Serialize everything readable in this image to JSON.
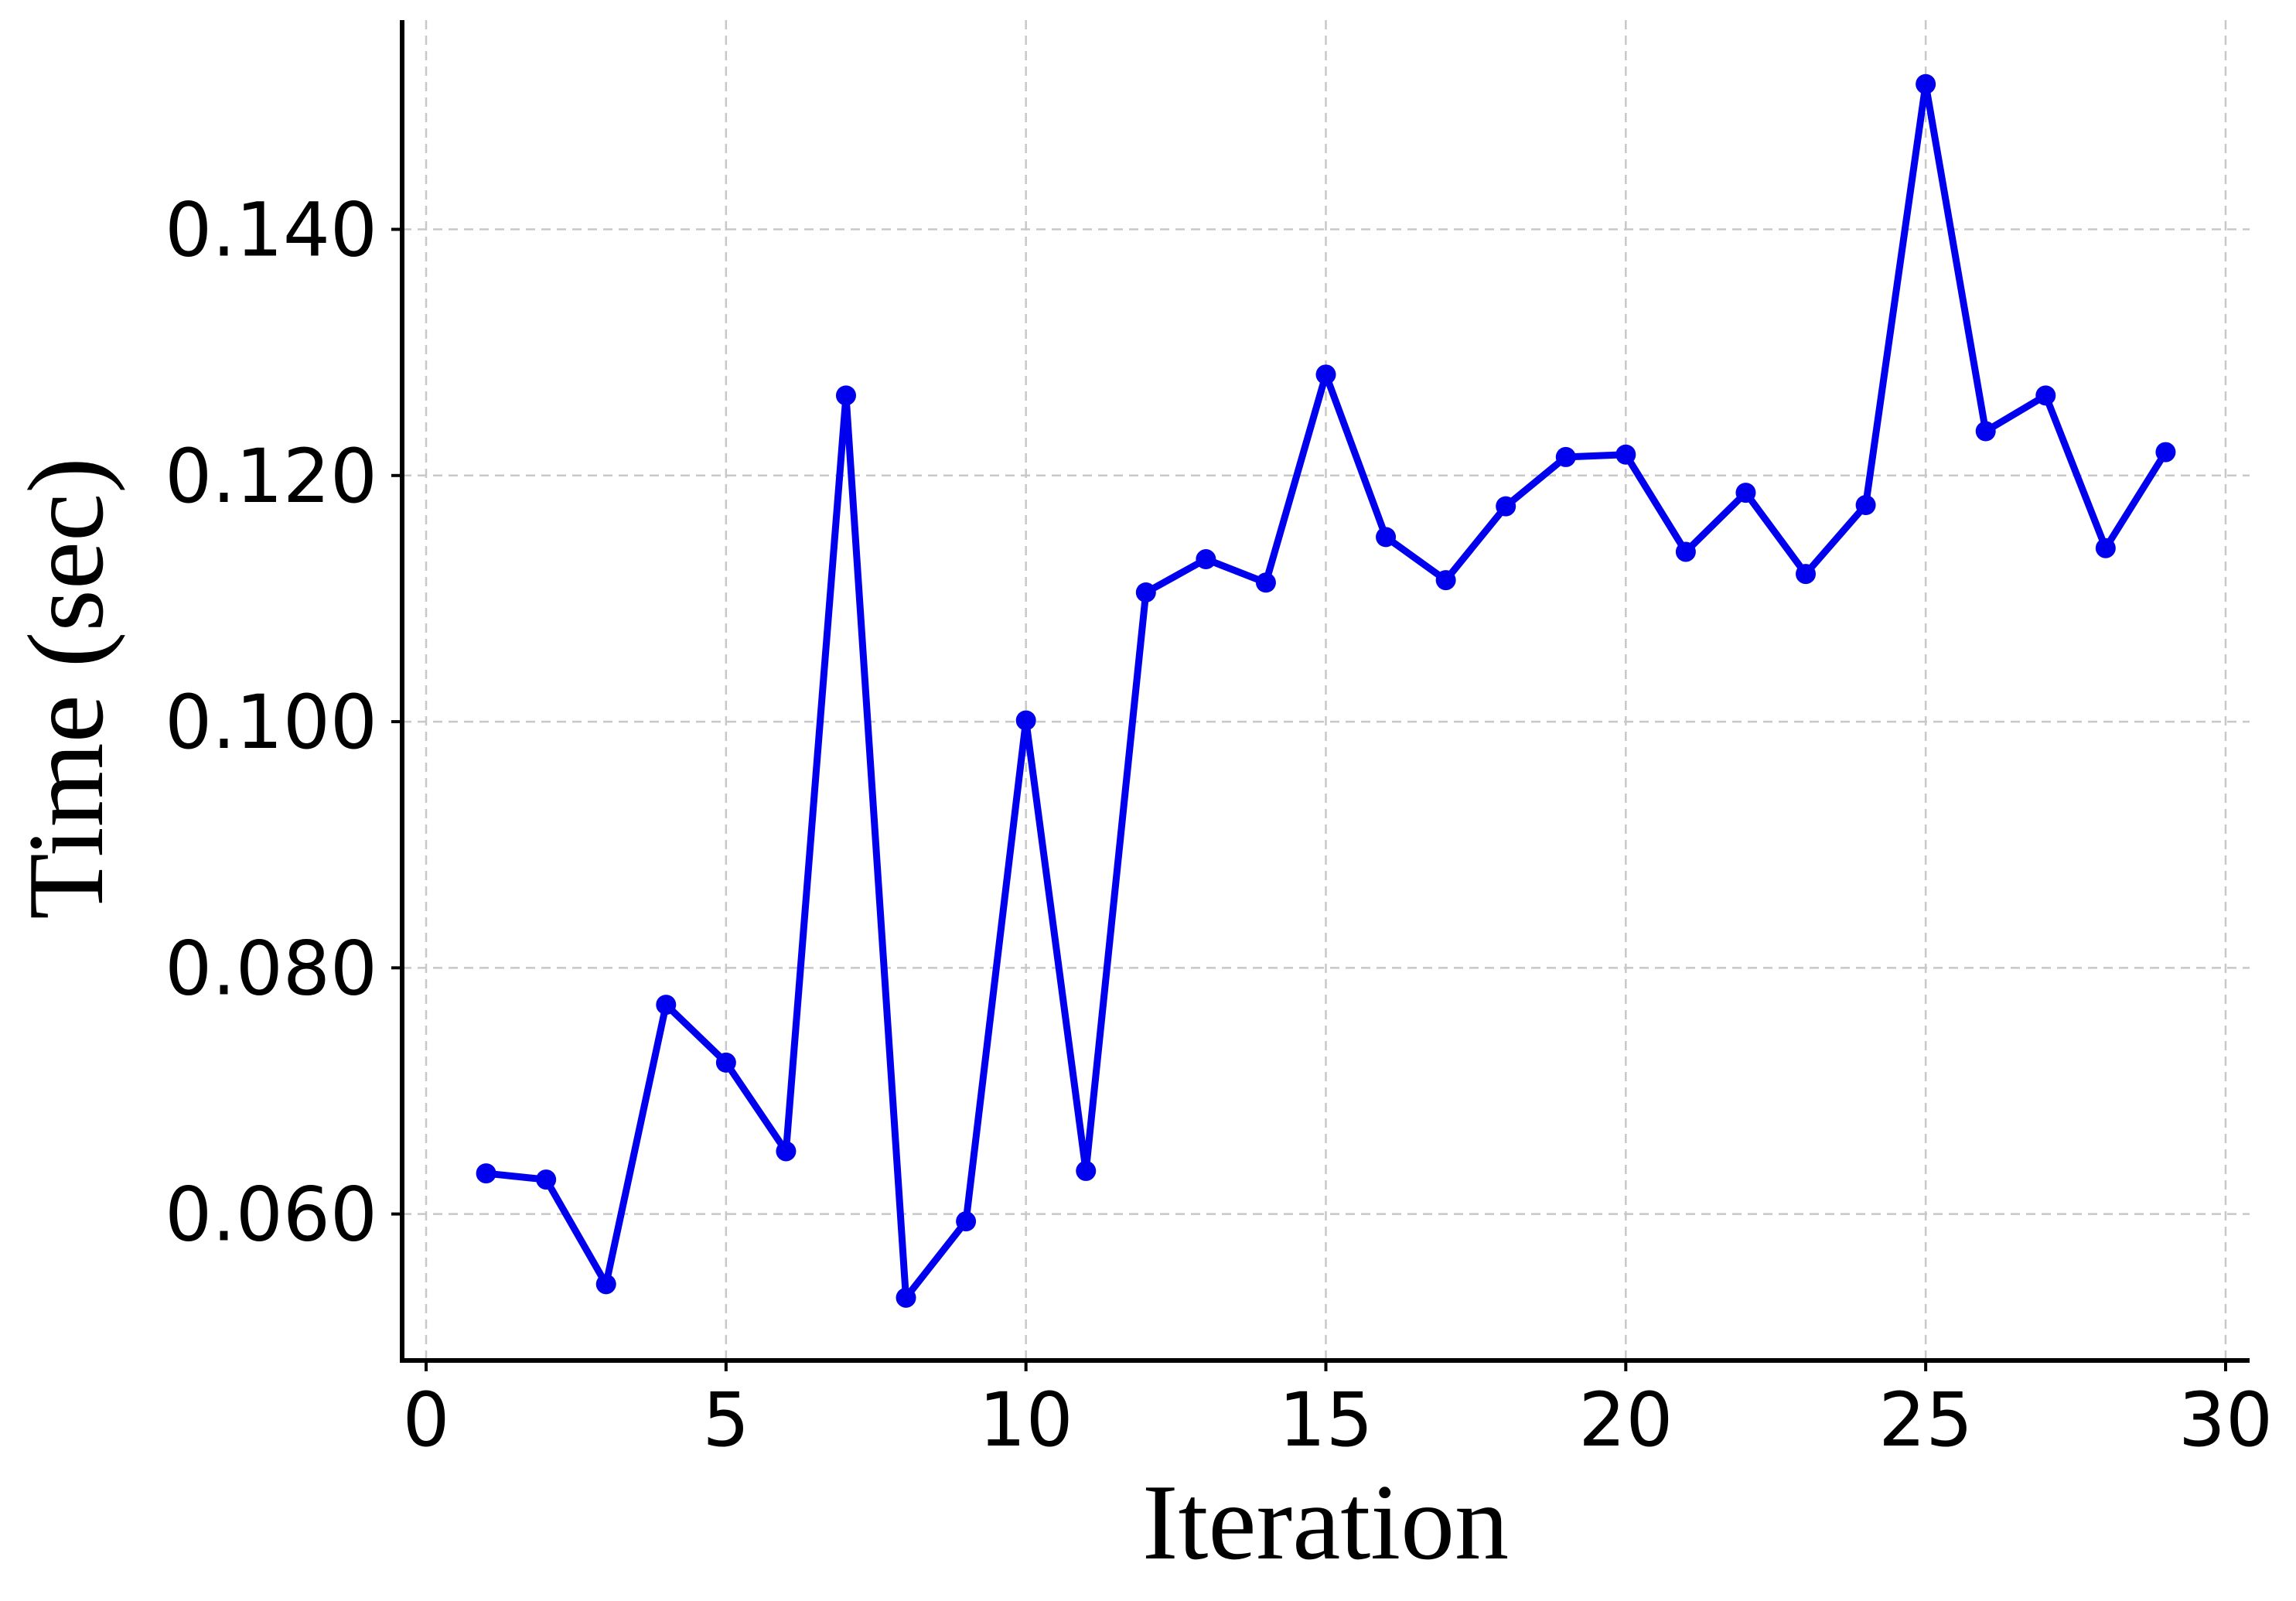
{
  "chart_data": {
    "type": "line",
    "title": "",
    "xlabel": "Iteration",
    "ylabel": "Time (sec)",
    "xlim": [
      -0.4,
      30.4
    ],
    "ylim": [
      0.0481,
      0.157
    ],
    "x_ticks": [
      0,
      5,
      10,
      15,
      20,
      25,
      30
    ],
    "x_tick_labels": [
      "0",
      "5",
      "10",
      "15",
      "20",
      "25",
      "30"
    ],
    "y_ticks": [
      0.06,
      0.08,
      0.1,
      0.12,
      0.14
    ],
    "y_tick_labels": [
      "0.060",
      "0.080",
      "0.100",
      "0.120",
      "0.140"
    ],
    "grid": true,
    "legend": "none",
    "series": [
      {
        "color": "#0000ee",
        "marker": "circle",
        "x": [
          1,
          2,
          3,
          4,
          5,
          6,
          7,
          8,
          9,
          10,
          11,
          12,
          13,
          14,
          15,
          16,
          17,
          18,
          19,
          20,
          21,
          22,
          23,
          24,
          25,
          26,
          27,
          28,
          29
        ],
        "y": [
          0.0633,
          0.0628,
          0.0543,
          0.077,
          0.0723,
          0.0651,
          0.1265,
          0.0532,
          0.0594,
          0.1001,
          0.0635,
          0.1105,
          0.1132,
          0.1113,
          0.1282,
          0.115,
          0.1115,
          0.1175,
          0.1215,
          0.1217,
          0.1138,
          0.1186,
          0.112,
          0.1176,
          0.1518,
          0.1236,
          0.1265,
          0.1141,
          0.1219
        ]
      }
    ]
  }
}
